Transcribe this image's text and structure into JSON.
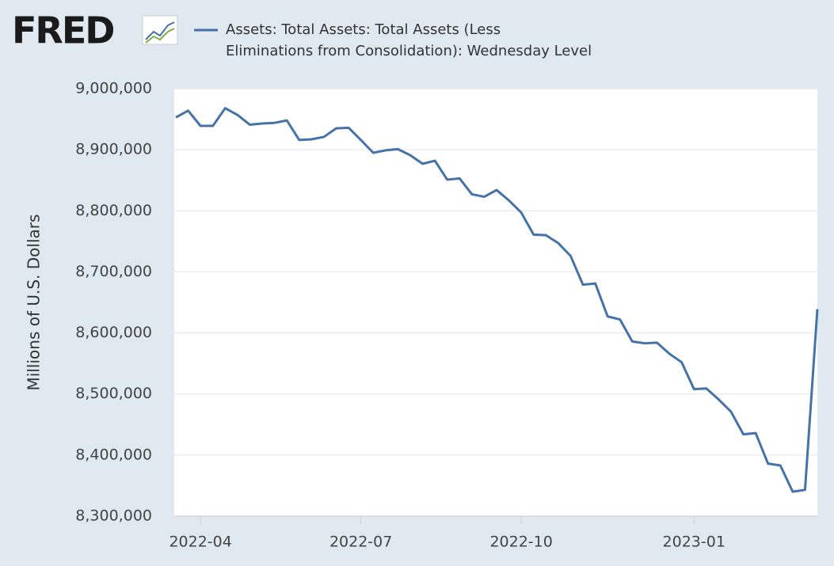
{
  "chart_data": {
    "type": "line",
    "logo": "FRED",
    "y_label": "Millions of U.S. Dollars",
    "categories": [
      null,
      null,
      "2022-04",
      null,
      null,
      null,
      null,
      null,
      null,
      null,
      null,
      null,
      null,
      null,
      null,
      "2022-07",
      null,
      null,
      null,
      null,
      null,
      null,
      null,
      null,
      null,
      null,
      null,
      null,
      "2022-10",
      null,
      null,
      null,
      null,
      null,
      null,
      null,
      null,
      null,
      null,
      null,
      null,
      null,
      "2023-01",
      null,
      null,
      null,
      null,
      null,
      null,
      null,
      null,
      null,
      null
    ],
    "series": [
      {
        "name": "Assets: Total Assets: Total Assets (Less Eliminations from Consolidation): Wednesday Level",
        "color": "#4572a7",
        "values": [
          8953000,
          8964000,
          8939000,
          8939000,
          8968000,
          8957000,
          8941000,
          8943000,
          8944000,
          8948000,
          8916000,
          8917000,
          8921000,
          8935000,
          8936000,
          8916000,
          8895000,
          8899000,
          8901000,
          8891000,
          8877000,
          8882000,
          8851000,
          8853000,
          8827000,
          8823000,
          8834000,
          8817000,
          8797000,
          8761000,
          8760000,
          8747000,
          8726000,
          8679000,
          8681000,
          8627000,
          8622000,
          8586000,
          8583000,
          8584000,
          8566000,
          8552000,
          8508000,
          8509000,
          8491000,
          8471000,
          8434000,
          8436000,
          8386000,
          8383000,
          8340000,
          8343000,
          8639000
        ]
      }
    ],
    "ylim": [
      8300000,
      9000000
    ],
    "yticks": [
      {
        "value": 8300000,
        "label": "8,300,000"
      },
      {
        "value": 8400000,
        "label": "8,400,000"
      },
      {
        "value": 8500000,
        "label": "8,500,000"
      },
      {
        "value": 8600000,
        "label": "8,600,000"
      },
      {
        "value": 8700000,
        "label": "8,700,000"
      },
      {
        "value": 8800000,
        "label": "8,800,000"
      },
      {
        "value": 8900000,
        "label": "8,900,000"
      },
      {
        "value": 9000000,
        "label": "9,000,000"
      }
    ],
    "grid": true
  }
}
